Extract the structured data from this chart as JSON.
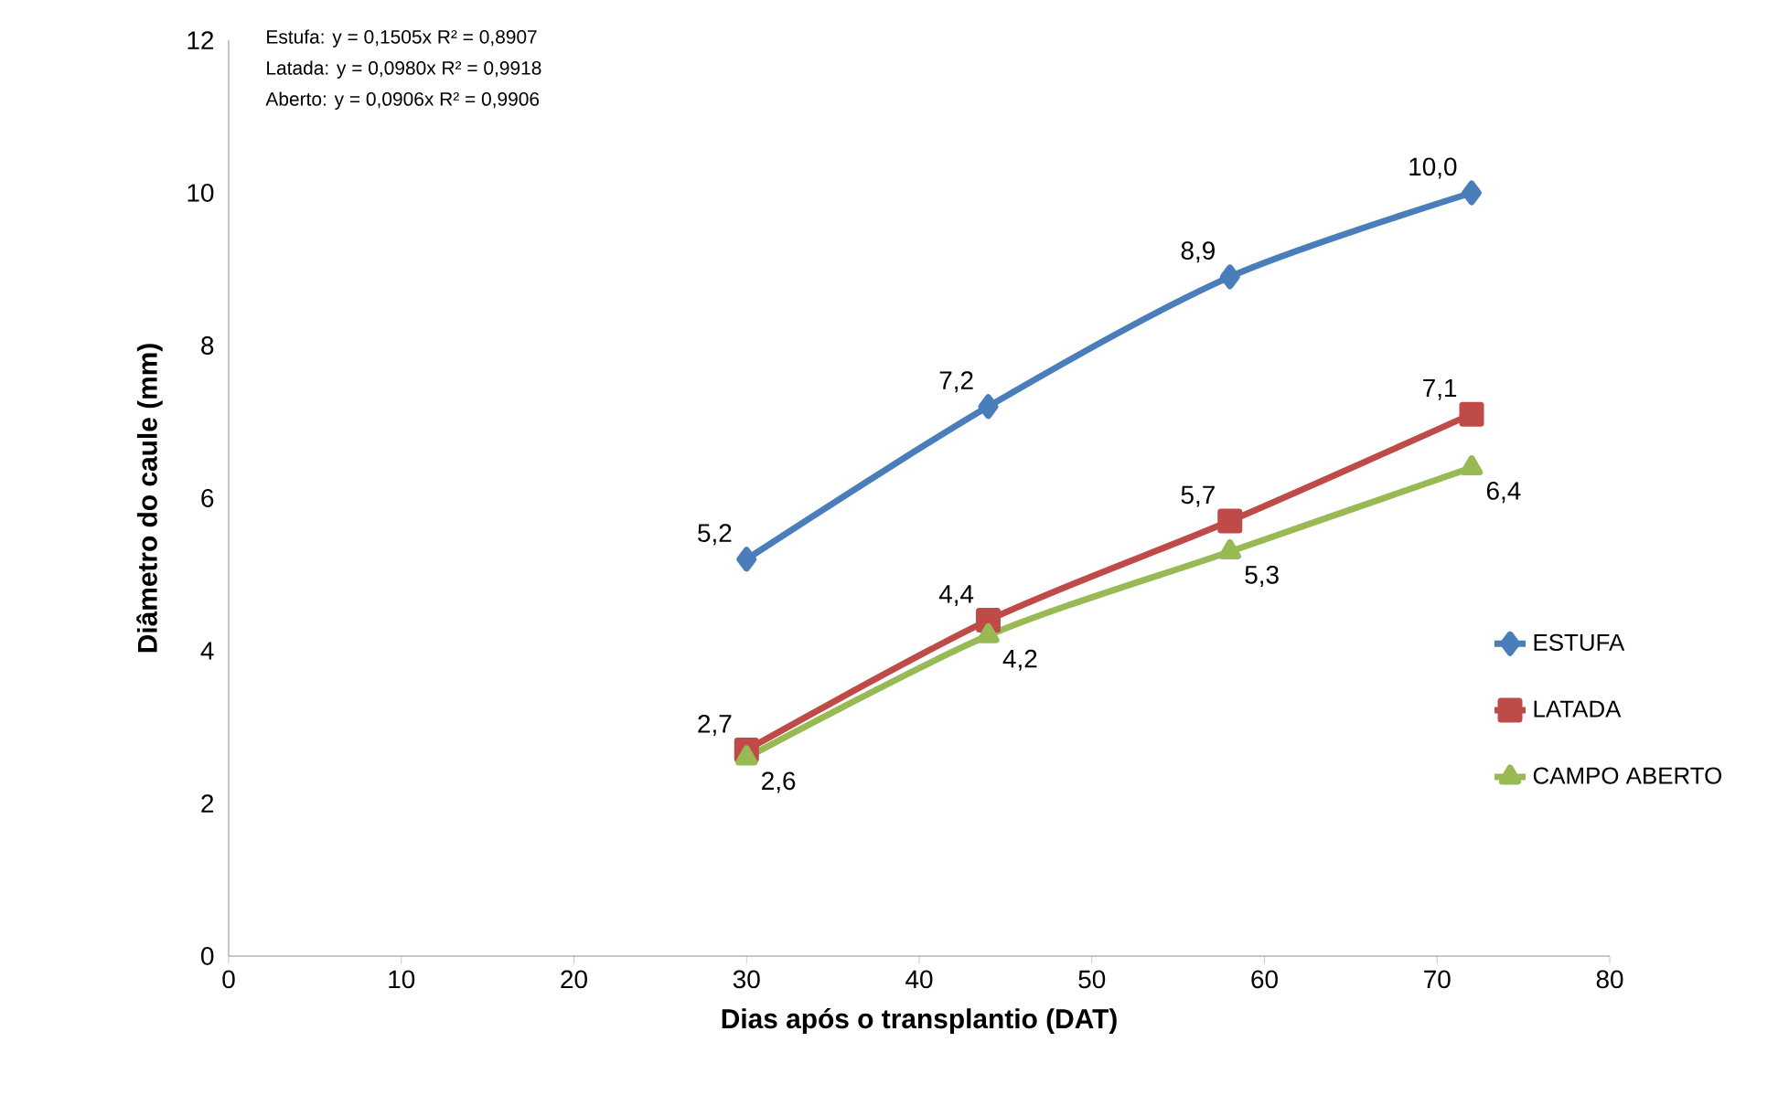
{
  "chart_data": {
    "type": "line",
    "xlabel": "Dias após o transplantio (DAT)",
    "ylabel": "Diâmetro do caule (mm)",
    "x": [
      30,
      44,
      58,
      72
    ],
    "series": [
      {
        "name": "ESTUFA",
        "color": "#4a7ebb",
        "marker": "diamond",
        "values": [
          5.2,
          7.2,
          8.9,
          10.0
        ],
        "value_labels": [
          "5,2",
          "7,2",
          "8,9",
          "10,0"
        ]
      },
      {
        "name": "LATADA",
        "color": "#be4b48",
        "marker": "square",
        "values": [
          2.7,
          4.4,
          5.7,
          7.1
        ],
        "value_labels": [
          "2,7",
          "4,4",
          "5,7",
          "7,1"
        ]
      },
      {
        "name": "CAMPO ABERTO",
        "color": "#98b954",
        "marker": "triangle",
        "values": [
          2.6,
          4.2,
          5.3,
          6.4
        ],
        "value_labels": [
          "2,6",
          "4,2",
          "5,3",
          "6,4"
        ]
      }
    ],
    "xlim": [
      0,
      80
    ],
    "xticks": [
      0,
      10,
      20,
      30,
      40,
      50,
      60,
      70,
      80
    ],
    "ylim": [
      0,
      12
    ],
    "yticks": [
      0,
      2,
      4,
      6,
      8,
      10,
      12
    ],
    "grid": false,
    "legend": "right",
    "line_style": "solid",
    "annotations": [
      "Estufa:   y = 0,1505x   R² = 0,8907",
      "Latada:  y =  0,0980x  R² = 0,9918",
      "Aberto:  y =  0,0906x  R² = 0,9906"
    ]
  }
}
